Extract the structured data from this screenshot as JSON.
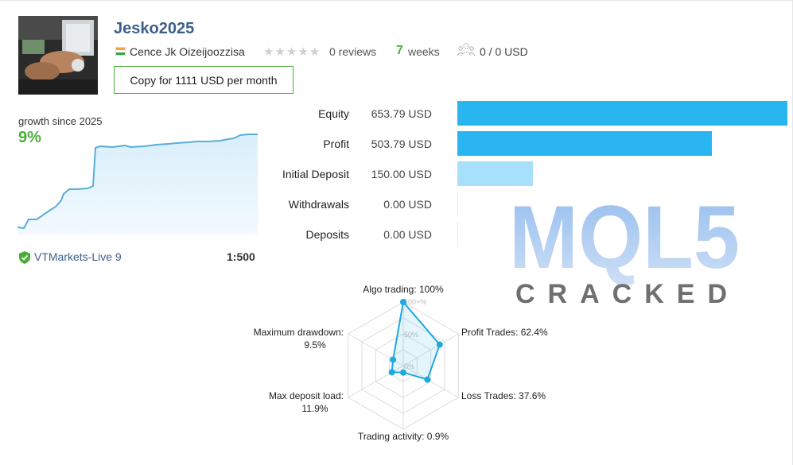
{
  "signal": {
    "title": "Jesko2025",
    "author": "Cence Jk Oizeijoozzisa",
    "reviews": "0 reviews",
    "weeks_num": "7",
    "weeks_label": "weeks",
    "subscribers": "0 / 0 USD",
    "copy_button": "Copy for 1111 USD per month",
    "rating_stars": 0
  },
  "growth": {
    "label": "growth since 2025",
    "value": "9%"
  },
  "broker": {
    "name": "VTMarkets-Live 9",
    "leverage": "1:500"
  },
  "metrics": [
    {
      "label": "Equity",
      "value": "653.79 USD",
      "amount": 653.79
    },
    {
      "label": "Profit",
      "value": "503.79 USD",
      "amount": 503.79
    },
    {
      "label": "Initial Deposit",
      "value": "150.00 USD",
      "amount": 150.0
    },
    {
      "label": "Withdrawals",
      "value": "0.00 USD",
      "amount": 0
    },
    {
      "label": "Deposits",
      "value": "0.00 USD",
      "amount": 0
    }
  ],
  "watermark": {
    "logo_text": "MQL5",
    "sub_text": "CRACKED"
  },
  "radar": {
    "scale": {
      "outer": "100+%",
      "mid": "50%",
      "inner": "0%"
    },
    "axes": [
      {
        "name": "Algo trading",
        "label_line1": "Algo trading: 100%",
        "label_line2": "",
        "value": 100
      },
      {
        "name": "Profit Trades",
        "label_line1": "Profit Trades: 62.4%",
        "label_line2": "",
        "value": 62.4
      },
      {
        "name": "Loss Trades",
        "label_line1": "Loss Trades: 37.6%",
        "label_line2": "",
        "value": 37.6
      },
      {
        "name": "Trading activity",
        "label_line1": "Trading activity: 0.9%",
        "label_line2": "",
        "value": 0.9
      },
      {
        "name": "Max deposit load",
        "label_line1": "Max deposit load:",
        "label_line2": "11.9%",
        "value": 11.9
      },
      {
        "name": "Maximum drawdown",
        "label_line1": "Maximum drawdown:",
        "label_line2": "9.5%",
        "value": 9.5
      }
    ]
  },
  "colors": {
    "accent_green": "#4cae3a",
    "link_blue": "#3d5e8c",
    "bar_primary": "#29b6f0",
    "bar_light": "#a6e0fa",
    "radar_line": "#1fa9e0"
  }
}
